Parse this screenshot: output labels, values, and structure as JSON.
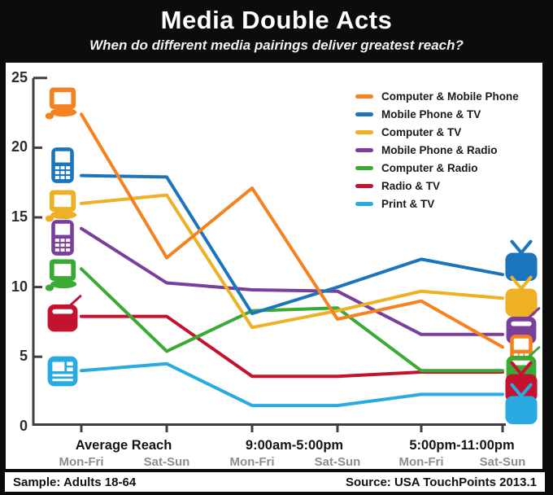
{
  "header": {
    "title": "Media Double Acts",
    "subtitle": "When do different media pairings deliver greatest reach?"
  },
  "footer": {
    "sample": "Sample: Adults 18-64",
    "source": "Source: USA TouchPoints 2013.1"
  },
  "chart_data": {
    "type": "line",
    "title": "Media Double Acts",
    "ylabel": "",
    "xlabel": "",
    "ylim": [
      0,
      25
    ],
    "yticks": [
      0,
      5,
      10,
      15,
      20,
      25
    ],
    "grid": false,
    "legend_position": "top-right",
    "axis_color": "#3f3f3f",
    "x_groups": [
      {
        "label": "Average Reach",
        "center": 152,
        "sublabels": [
          "Mon-Fri",
          "Sat-Sun"
        ]
      },
      {
        "label": "9:00am-5:00pm",
        "center": 362,
        "sublabels": [
          "Mon-Fri",
          "Sat-Sun"
        ]
      },
      {
        "label": "5:00pm-11:00pm",
        "center": 568,
        "sublabels": [
          "Mon-Fri",
          "Sat-Sun"
        ]
      }
    ],
    "categories": [
      "Average Reach Mon-Fri",
      "Average Reach Sat-Sun",
      "9:00am-5:00pm Mon-Fri",
      "9:00am-5:00pm Sat-Sun",
      "5:00pm-11:00pm Mon-Fri",
      "5:00pm-11:00pm Sat-Sun"
    ],
    "series": [
      {
        "name": "Computer & Mobile Phone",
        "color": "#F5821F",
        "values": [
          22.4,
          12.1,
          17.1,
          7.7,
          9.0,
          5.7
        ],
        "left_icon": "computer",
        "left_icon_y": 127,
        "right_icon": "mobile-phone",
        "right_icon_y": 433
      },
      {
        "name": "Mobile Phone & TV",
        "color": "#1B75BC",
        "values": [
          18.0,
          17.9,
          8.1,
          10.0,
          12.0,
          10.9
        ],
        "left_icon": "mobile-phone",
        "left_icon_y": 203,
        "right_icon": "tv",
        "right_icon_y": 322
      },
      {
        "name": "Computer & TV",
        "color": "#EEB024",
        "values": [
          16.0,
          16.6,
          7.1,
          8.3,
          9.7,
          9.2
        ],
        "left_icon": "computer",
        "left_icon_y": 253,
        "right_icon": "tv",
        "right_icon_y": 366
      },
      {
        "name": "Mobile Phone & Radio",
        "color": "#7A3E9D",
        "values": [
          14.2,
          10.3,
          9.8,
          9.7,
          6.6,
          6.6
        ],
        "left_icon": "mobile-phone",
        "left_icon_y": 292,
        "right_icon": "radio",
        "right_icon_y": 404
      },
      {
        "name": "Computer & Radio",
        "color": "#3AAA35",
        "values": [
          11.3,
          5.4,
          8.3,
          8.5,
          4.0,
          4.0
        ],
        "left_icon": "computer",
        "left_icon_y": 338,
        "right_icon": "radio",
        "right_icon_y": 452
      },
      {
        "name": "Radio & TV",
        "color": "#C4132E",
        "values": [
          7.9,
          7.9,
          3.6,
          3.6,
          3.9,
          3.9
        ],
        "left_icon": "radio",
        "left_icon_y": 389,
        "right_icon": "tv",
        "right_icon_y": 471
      },
      {
        "name": "Print & TV",
        "color": "#29ABE2",
        "values": [
          4.0,
          4.5,
          1.5,
          1.5,
          2.3,
          2.3
        ],
        "left_icon": "print",
        "left_icon_y": 456,
        "right_icon": "tv",
        "right_icon_y": 498
      }
    ]
  }
}
